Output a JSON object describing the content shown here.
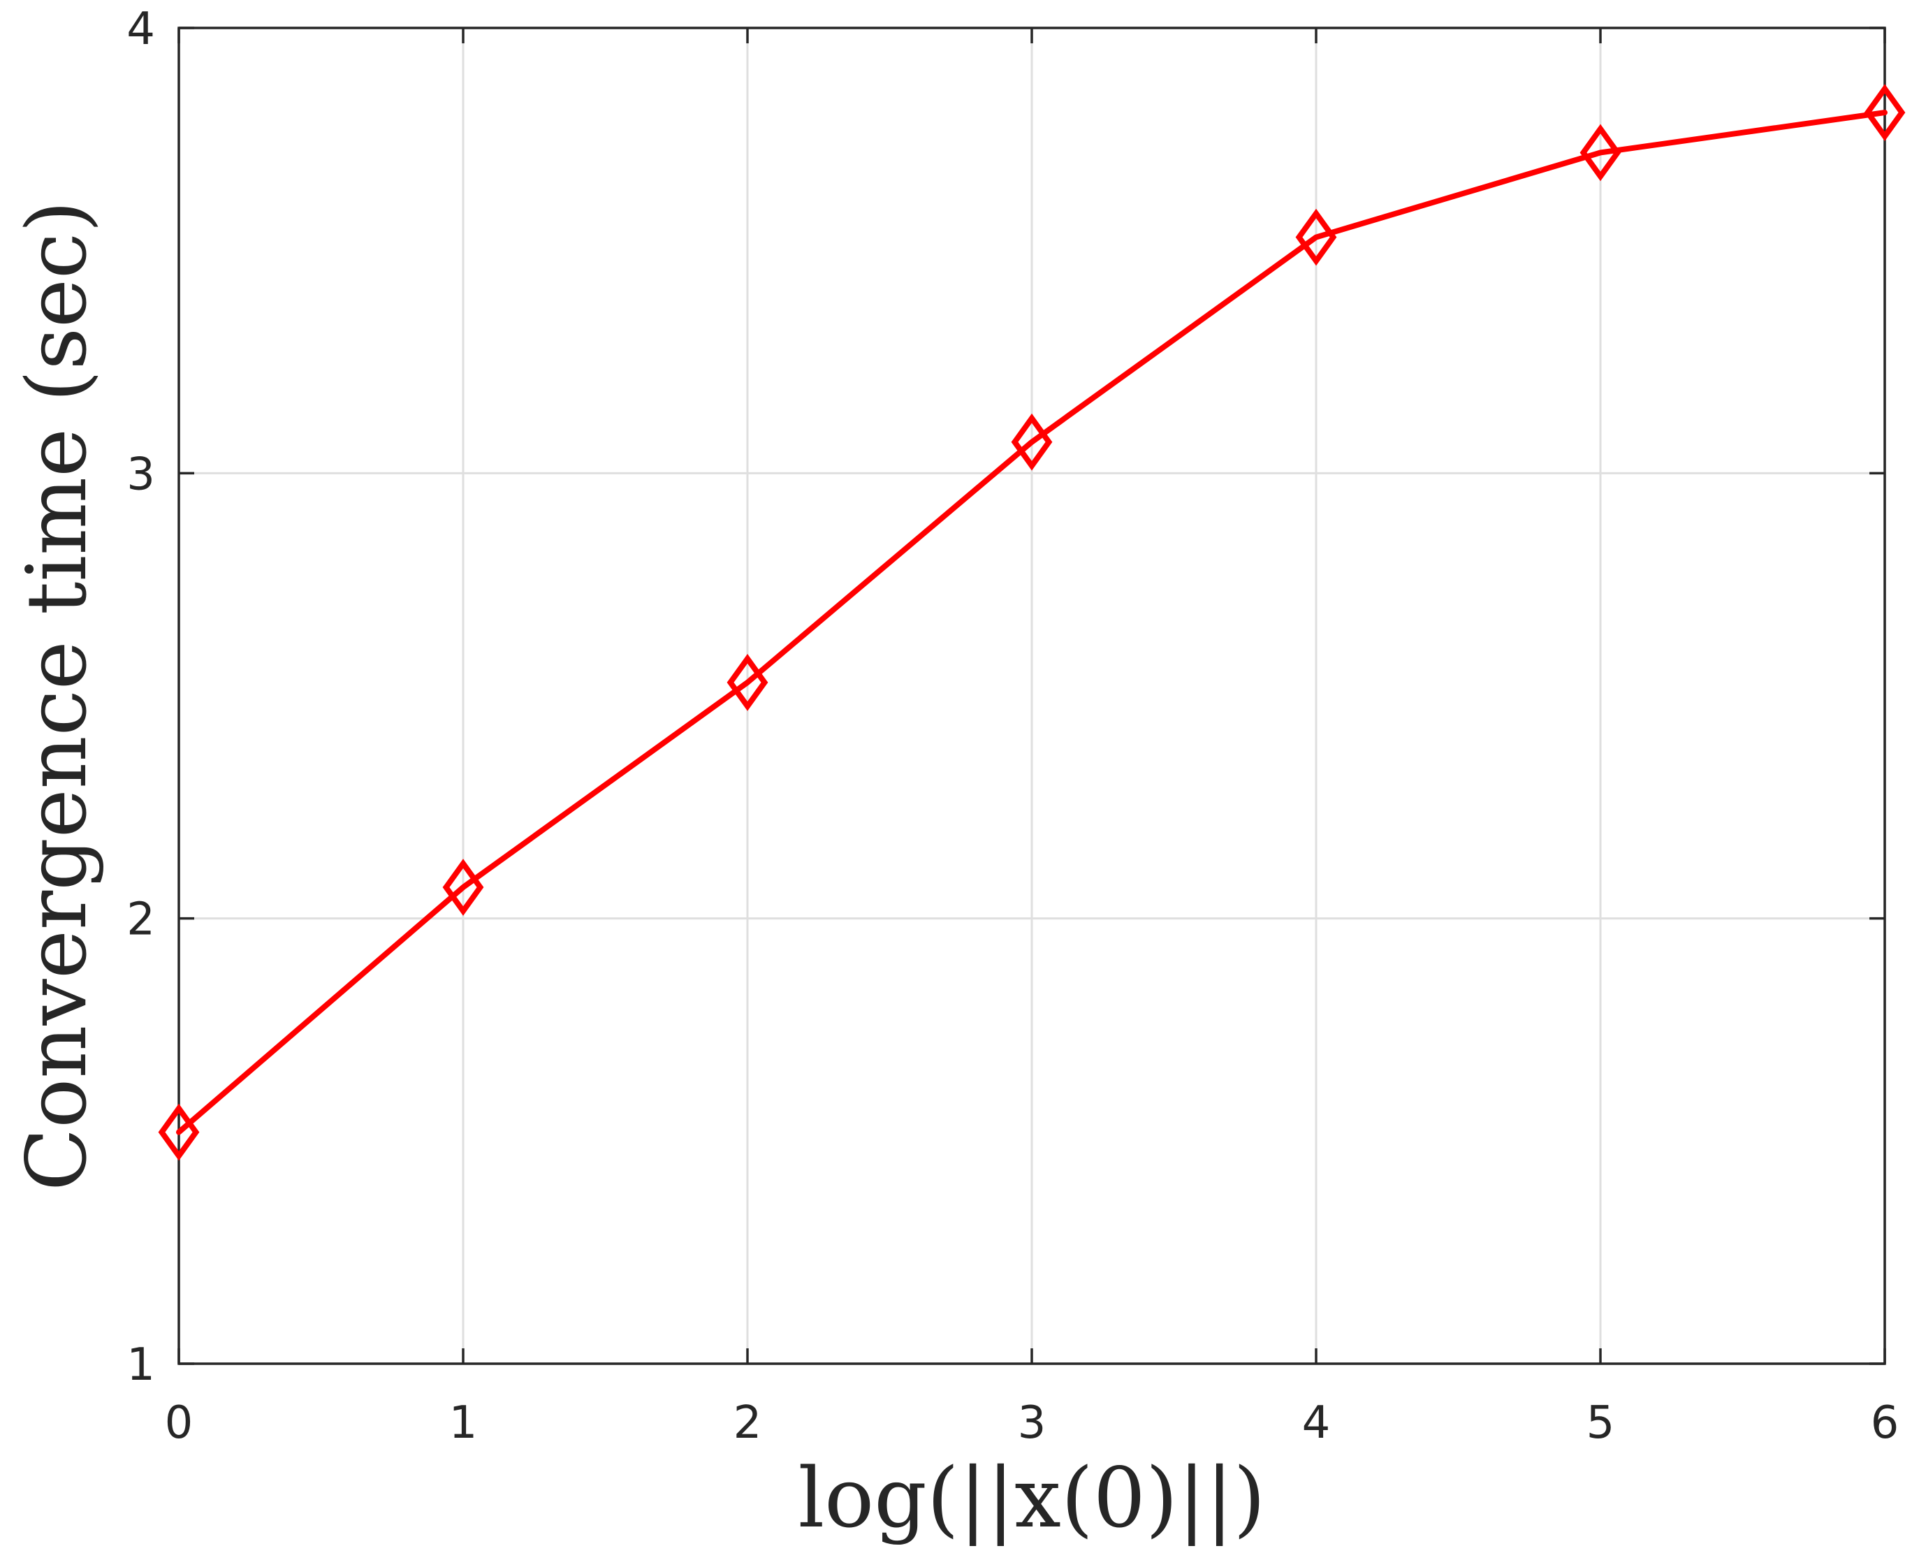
{
  "chart_data": {
    "type": "line",
    "xlabel": "log(||x(0)||)",
    "ylabel": "Convergence time (sec)",
    "xlim": [
      0,
      6
    ],
    "ylim": [
      1,
      4
    ],
    "x_ticks": [
      0,
      1,
      2,
      3,
      4,
      5,
      6
    ],
    "y_ticks": [
      1,
      2,
      3,
      4
    ],
    "grid": true,
    "series": [
      {
        "x": [
          0,
          1,
          2,
          3,
          4,
          5,
          6
        ],
        "values": [
          1.52,
          2.07,
          2.53,
          3.07,
          3.53,
          3.72,
          3.81
        ],
        "color": "#ff0000",
        "marker": "diamond"
      }
    ]
  }
}
